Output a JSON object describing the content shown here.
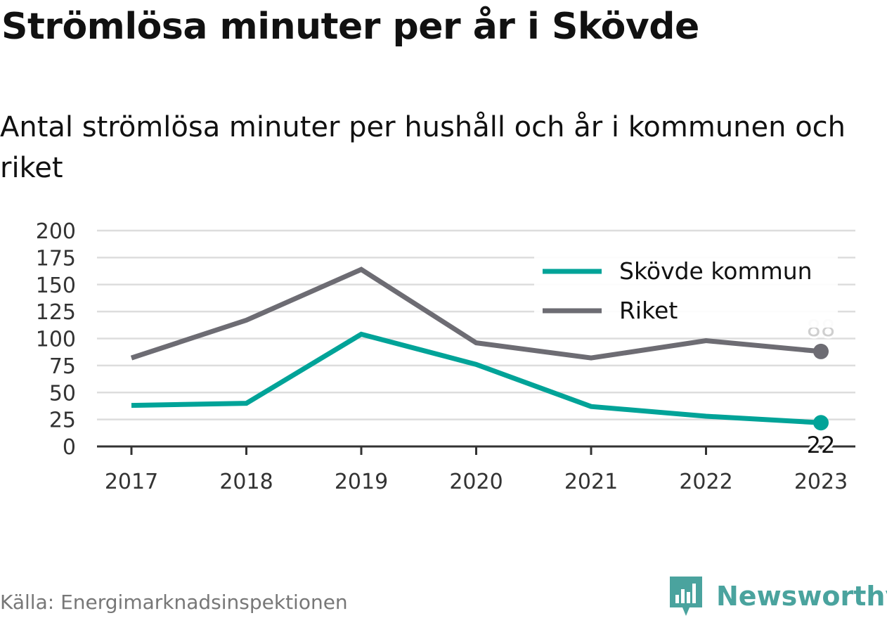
{
  "header": {
    "title": "Strömlösa minuter per år i Skövde",
    "subtitle": "Antal strömlösa minuter per hushåll och år i kommunen och riket"
  },
  "footer": {
    "source": "Källa: Energimarknadsinspektionen",
    "brand": "Newsworthy"
  },
  "colors": {
    "skovde": "#00a398",
    "riket": "#6d6c73",
    "grid": "#dddddd",
    "axis": "#333333",
    "brand": "#4aa39e"
  },
  "icons": {
    "brand_logo": "bar-chart-logo-icon"
  },
  "chart_data": {
    "type": "line",
    "x": [
      "2017",
      "2018",
      "2019",
      "2020",
      "2021",
      "2022",
      "2023"
    ],
    "series": [
      {
        "name": "Skövde kommun",
        "values": [
          38,
          40,
          104,
          76,
          37,
          28,
          22
        ],
        "end_label": "22"
      },
      {
        "name": "Riket",
        "values": [
          82,
          117,
          164,
          96,
          82,
          98,
          88
        ],
        "end_label": "88"
      }
    ],
    "ylim": [
      0,
      200
    ],
    "yticks": [
      "0",
      "25",
      "50",
      "75",
      "100",
      "125",
      "150",
      "175",
      "200"
    ],
    "grid": true,
    "legend": "top-right"
  }
}
